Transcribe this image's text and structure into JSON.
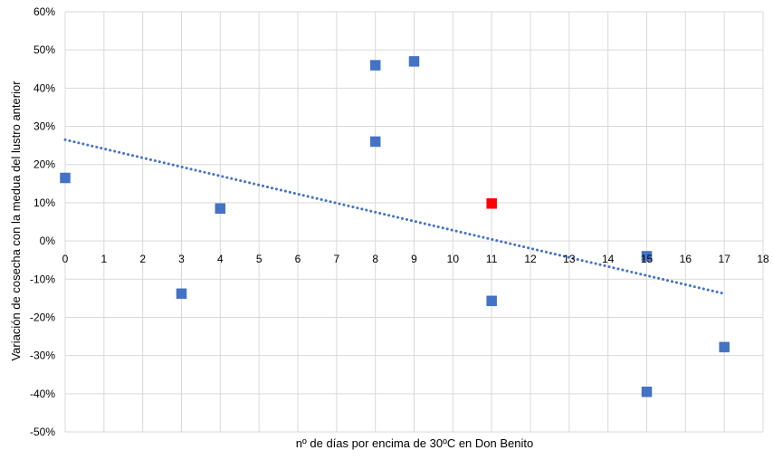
{
  "chart_data": {
    "type": "scatter",
    "title": "",
    "xlabel": "nº de días por encima de 30ºC en Don Benito",
    "ylabel": "Variación de cosecha con la medua del lustro anterior",
    "xlim": [
      0,
      18
    ],
    "ylim": [
      -0.5,
      0.6
    ],
    "x_ticks": [
      "0",
      "1",
      "2",
      "3",
      "4",
      "5",
      "6",
      "7",
      "8",
      "9",
      "10",
      "11",
      "12",
      "13",
      "14",
      "15",
      "16",
      "17",
      "18"
    ],
    "y_ticks": [
      "60%",
      "50%",
      "40%",
      "30%",
      "20%",
      "10%",
      "0%",
      "-10%",
      "-20%",
      "-30%",
      "-40%",
      "-50%"
    ],
    "grid": true,
    "legend": "none",
    "series": [
      {
        "color": "#4472c4",
        "marker": "square",
        "points": [
          {
            "x": 0,
            "y": 0.165
          },
          {
            "x": 3,
            "y": -0.138
          },
          {
            "x": 4,
            "y": 0.085
          },
          {
            "x": 8,
            "y": 0.46
          },
          {
            "x": 8,
            "y": 0.26
          },
          {
            "x": 9,
            "y": 0.47
          },
          {
            "x": 11,
            "y": -0.157
          },
          {
            "x": 15,
            "y": -0.04
          },
          {
            "x": 15,
            "y": -0.395
          },
          {
            "x": 17,
            "y": -0.278
          }
        ]
      },
      {
        "color": "#ff0000",
        "marker": "square",
        "points": [
          {
            "x": 11,
            "y": 0.098
          }
        ]
      }
    ],
    "trendline": {
      "type": "linear",
      "style": "dotted",
      "color": "#4472c4",
      "x_range": [
        0,
        17
      ],
      "y_start": 0.265,
      "y_end": -0.138
    }
  }
}
